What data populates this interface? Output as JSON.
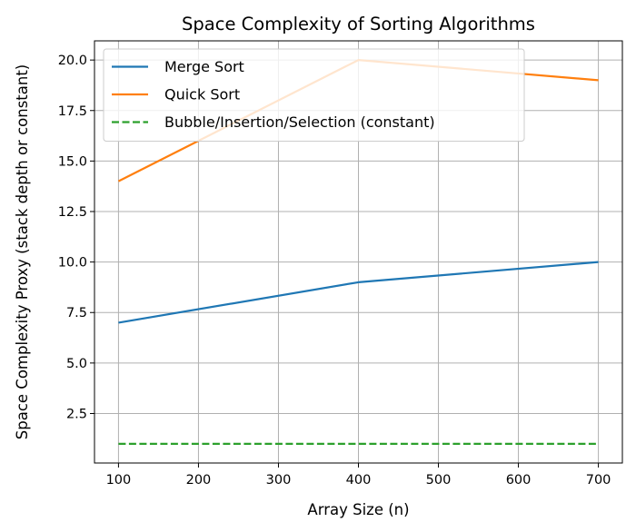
{
  "chart_data": {
    "type": "line",
    "title": "Space Complexity of Sorting Algorithms",
    "xlabel": "Array Size (n)",
    "ylabel": "Space Complexity Proxy (stack depth or constant)",
    "xlim": [
      70,
      730
    ],
    "ylim": [
      0.05,
      20.95
    ],
    "xticks": [
      100,
      200,
      300,
      400,
      500,
      600,
      700
    ],
    "yticks": [
      2.5,
      5.0,
      7.5,
      10.0,
      12.5,
      15.0,
      17.5,
      20.0
    ],
    "ytick_labels": [
      "2.5",
      "5.0",
      "7.5",
      "10.0",
      "12.5",
      "15.0",
      "17.5",
      "20.0"
    ],
    "grid": true,
    "legend_position": "top-left",
    "series": [
      {
        "name": "Merge Sort",
        "color": "#1f77b4",
        "style": "solid",
        "x": [
          100,
          400,
          700
        ],
        "y": [
          7,
          9,
          10
        ]
      },
      {
        "name": "Quick Sort",
        "color": "#ff7f0e",
        "style": "solid",
        "x": [
          100,
          400,
          700
        ],
        "y": [
          14,
          20,
          19
        ]
      },
      {
        "name": "Bubble/Insertion/Selection (constant)",
        "color": "#2ca02c",
        "style": "dashed",
        "x": [
          100,
          400,
          700
        ],
        "y": [
          1,
          1,
          1
        ]
      }
    ]
  }
}
